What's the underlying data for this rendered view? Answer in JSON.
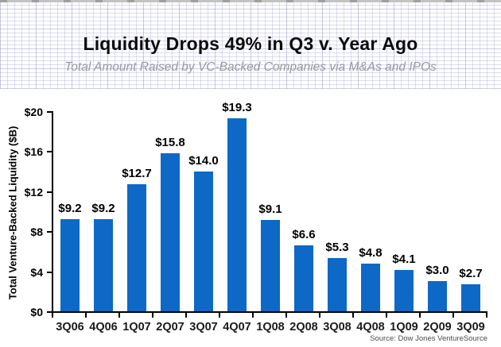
{
  "page": {
    "title": "Liquidity Drops 49% in Q3 v. Year Ago",
    "subtitle": "Total Amount Raised by VC-Backed Companies via M&As and IPOs",
    "source": "Source: Dow Jones VentureSource"
  },
  "colors": {
    "bar": "#0d69c5",
    "axis": "#000000",
    "title": "#0b0b0b",
    "subtitle": "#9a9a9a",
    "source": "#4a4a4a",
    "header_grid_line": "#d6d6ea"
  },
  "chart_data": {
    "type": "bar",
    "title": "Liquidity Drops 49% in Q3 v. Year Ago",
    "subtitle": "Total Amount Raised by VC-Backed Companies via M&As and IPOs",
    "xlabel": "",
    "ylabel": "Total Venture-Backed Liquidity ($B)",
    "ylim": [
      0,
      20
    ],
    "grid": false,
    "legend_position": "none",
    "yticks": [
      {
        "value": 0,
        "label": "$0"
      },
      {
        "value": 4,
        "label": "$4"
      },
      {
        "value": 8,
        "label": "$8"
      },
      {
        "value": 12,
        "label": "$12"
      },
      {
        "value": 16,
        "label": "$16"
      },
      {
        "value": 20,
        "label": "$20"
      }
    ],
    "categories": [
      "3Q06",
      "4Q06",
      "1Q07",
      "2Q07",
      "3Q07",
      "4Q07",
      "1Q08",
      "2Q08",
      "3Q08",
      "4Q08",
      "1Q09",
      "2Q09",
      "3Q09"
    ],
    "values": [
      9.2,
      9.2,
      12.7,
      15.8,
      14.0,
      19.3,
      9.1,
      6.6,
      5.3,
      4.8,
      4.1,
      3.0,
      2.7
    ],
    "bar_labels": [
      "$9.2",
      "$9.2",
      "$12.7",
      "$15.8",
      "$14.0",
      "$19.3",
      "$9.1",
      "$6.6",
      "$5.3",
      "$4.8",
      "$4.1",
      "$3.0",
      "$2.7"
    ],
    "source": "Source: Dow Jones VentureSource"
  }
}
